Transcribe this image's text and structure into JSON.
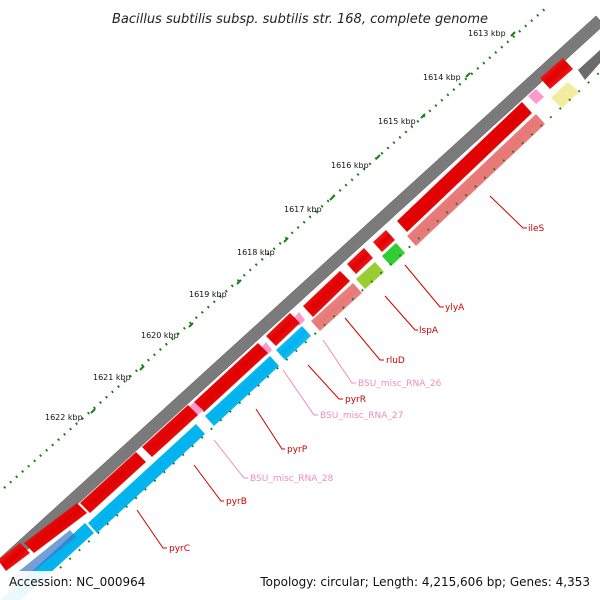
{
  "title": "Bacillus subtilis subsp. subtilis str. 168, complete genome",
  "ticks": [
    "1613 kbp",
    "1614 kbp",
    "1615 kbp",
    "1616 kbp",
    "1617 kbp",
    "1618 kbp",
    "1619 kbp",
    "1620 kbp",
    "1621 kbp",
    "1622 kbp"
  ],
  "genes": [
    "ileS",
    "ylyA",
    "lspA",
    "rluD",
    "BSU_misc_RNA_26",
    "pyrR",
    "BSU_misc_RNA_27",
    "pyrP",
    "BSU_misc_RNA_28",
    "pyrB",
    "pyrC"
  ],
  "footer": {
    "accession": "Accession: NC_000964",
    "summary": "Topology: circular; Length: 4,215,606 bp; Genes: 4,353"
  },
  "colors": {
    "cds_forward": "#ff0000",
    "cds_reverse": "#f08080",
    "pyr_operon": "#00bfff",
    "misc_rna": "#ff99cc",
    "backbone": "#808080",
    "tick_mark": "#228B22",
    "label_red": "#cc0000",
    "label_pink": "#e98fb8"
  }
}
